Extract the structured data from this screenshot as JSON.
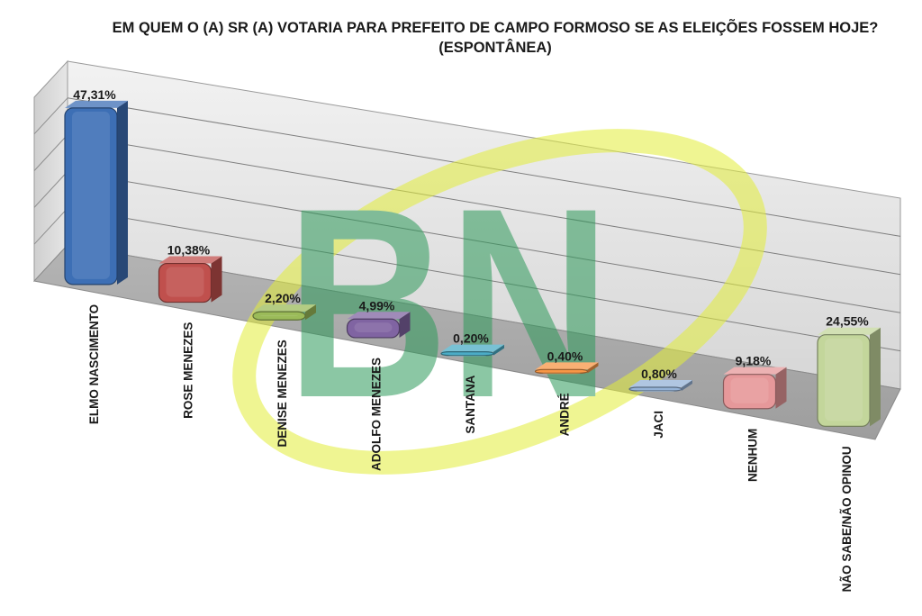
{
  "chart_data": {
    "type": "bar",
    "title": "EM QUEM O (A) SR (A) VOTARIA PARA PREFEITO DE CAMPO FORMOSO SE AS ELEIÇÕES FOSSEM HOJE? (ESPONTÂNEA)",
    "xlabel": "",
    "ylabel": "",
    "categories": [
      "ELMO NASCIMENTO",
      "ROSE MENEZES",
      "DENISE MENEZES",
      "ADOLFO MENEZES",
      "SANTANA",
      "ANDRÉ",
      "JACI",
      "NENHUM",
      "NÃO SABE/NÃO OPINOU"
    ],
    "values": [
      47.31,
      10.38,
      2.2,
      4.99,
      0.2,
      0.4,
      0.8,
      9.18,
      24.55
    ],
    "data_labels": [
      "47,31%",
      "10,38%",
      "2,20%",
      "4,99%",
      "0,20%",
      "0,40%",
      "0,80%",
      "9,18%",
      "24,55%"
    ],
    "colors": [
      "#3d6fb5",
      "#c0504d",
      "#9bbb59",
      "#8064a2",
      "#4bacc6",
      "#f79646",
      "#95b3d7",
      "#e6989a",
      "#c3d69b"
    ],
    "ylim": [
      0,
      50
    ],
    "grid": true,
    "legend": "none",
    "three_d": true
  },
  "watermark": {
    "text": "BN",
    "colors": [
      "#2e9a5a",
      "#e3ee3a"
    ]
  }
}
